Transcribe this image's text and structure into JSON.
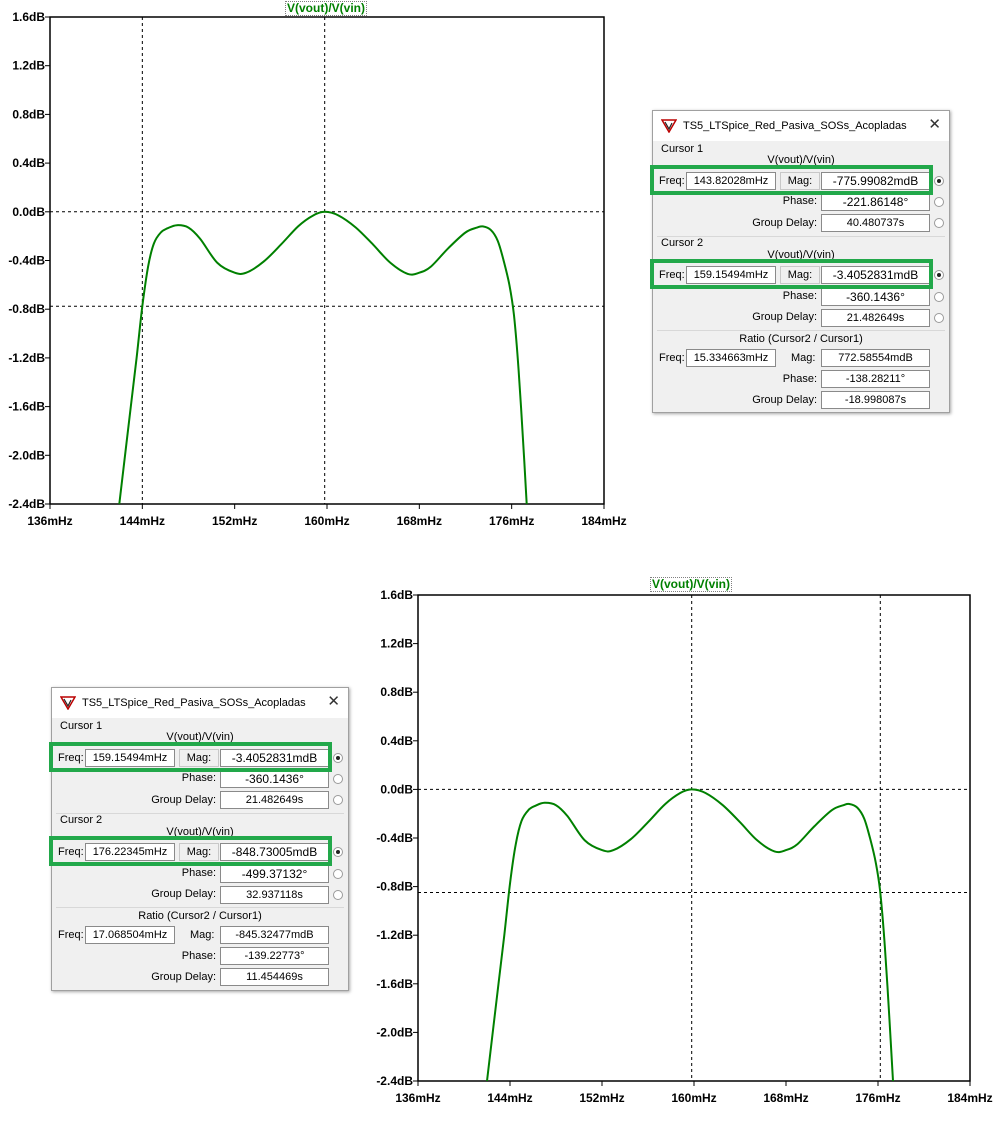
{
  "chart_data": [
    {
      "type": "line",
      "title": "V(vout)/V(vin)",
      "xlabel": "",
      "ylabel": "",
      "xlim": [
        136,
        184
      ],
      "ylim": [
        -2.4,
        1.6
      ],
      "x_unit": "mHz",
      "y_unit": "dB",
      "x_ticks": [
        "136mHz",
        "144mHz",
        "152mHz",
        "160mHz",
        "168mHz",
        "176mHz",
        "184mHz"
      ],
      "y_ticks": [
        "1.6dB",
        "1.2dB",
        "0.8dB",
        "0.4dB",
        "0.0dB",
        "-0.4dB",
        "-0.8dB",
        "-1.2dB",
        "-1.6dB",
        "-2.0dB",
        "-2.4dB"
      ],
      "grid": false,
      "series": [
        {
          "name": "V(vout)/V(vin)",
          "color": "#008000",
          "x": [
            142.0,
            143.0,
            143.5,
            144.0,
            144.5,
            145.0,
            145.6,
            146.2,
            147.0,
            148.0,
            149.0,
            150.5,
            152.0,
            153.0,
            154.5,
            156.0,
            157.5,
            158.8,
            159.8,
            161.0,
            162.5,
            164.0,
            165.5,
            167.0,
            168.0,
            169.0,
            170.5,
            172.0,
            173.0,
            173.5,
            174.2,
            174.8,
            175.3,
            175.8,
            176.2,
            176.6,
            177.0,
            177.3
          ],
          "y": [
            -2.4,
            -1.6,
            -1.2,
            -0.775,
            -0.45,
            -0.26,
            -0.17,
            -0.135,
            -0.11,
            -0.13,
            -0.22,
            -0.42,
            -0.5,
            -0.5,
            -0.41,
            -0.27,
            -0.12,
            -0.03,
            0.0,
            -0.03,
            -0.13,
            -0.27,
            -0.42,
            -0.51,
            -0.5,
            -0.45,
            -0.3,
            -0.17,
            -0.13,
            -0.12,
            -0.15,
            -0.24,
            -0.4,
            -0.6,
            -0.85,
            -1.3,
            -1.9,
            -2.4
          ]
        }
      ],
      "cursors": [
        144.0,
        159.8
      ],
      "cursor_levels": [
        -0.776,
        0.0
      ]
    },
    {
      "type": "line",
      "title": "V(vout)/V(vin)",
      "xlabel": "",
      "ylabel": "",
      "xlim": [
        136,
        184
      ],
      "ylim": [
        -2.4,
        1.6
      ],
      "x_unit": "mHz",
      "y_unit": "dB",
      "x_ticks": [
        "136mHz",
        "144mHz",
        "152mHz",
        "160mHz",
        "168mHz",
        "176mHz",
        "184mHz"
      ],
      "y_ticks": [
        "1.6dB",
        "1.2dB",
        "0.8dB",
        "0.4dB",
        "0.0dB",
        "-0.4dB",
        "-0.8dB",
        "-1.2dB",
        "-1.6dB",
        "-2.0dB",
        "-2.4dB"
      ],
      "grid": false,
      "series": [
        {
          "name": "V(vout)/V(vin)",
          "color": "#008000",
          "x": [
            142.0,
            143.0,
            143.5,
            144.0,
            144.5,
            145.0,
            145.6,
            146.2,
            147.0,
            148.0,
            149.0,
            150.5,
            152.0,
            153.0,
            154.5,
            156.0,
            157.5,
            158.8,
            159.8,
            161.0,
            162.5,
            164.0,
            165.5,
            167.0,
            168.0,
            169.0,
            170.5,
            172.0,
            173.0,
            173.5,
            174.2,
            174.8,
            175.3,
            175.8,
            176.2,
            176.6,
            177.0,
            177.3
          ],
          "y": [
            -2.4,
            -1.6,
            -1.2,
            -0.775,
            -0.45,
            -0.26,
            -0.17,
            -0.135,
            -0.11,
            -0.13,
            -0.22,
            -0.42,
            -0.5,
            -0.5,
            -0.41,
            -0.27,
            -0.12,
            -0.03,
            0.0,
            -0.03,
            -0.13,
            -0.27,
            -0.42,
            -0.51,
            -0.5,
            -0.45,
            -0.3,
            -0.17,
            -0.13,
            -0.12,
            -0.15,
            -0.24,
            -0.4,
            -0.6,
            -0.85,
            -1.3,
            -1.9,
            -2.4
          ]
        }
      ],
      "cursors": [
        159.8,
        176.2
      ],
      "cursor_levels": [
        0.0,
        -0.849
      ]
    }
  ],
  "cursor_windows": [
    {
      "title": "TS5_LTSpice_Red_Pasiva_SOSs_Acopladas",
      "cursor1": {
        "header": "Cursor 1",
        "expr": "V(vout)/V(vin)",
        "freq_label": "Freq:",
        "freq": "143.82028mHz",
        "mag_label": "Mag:",
        "mag": "-775.99082mdB",
        "phase_label": "Phase:",
        "phase": "-221.86148°",
        "gd_label": "Group Delay:",
        "gd": "40.480737s"
      },
      "cursor2": {
        "header": "Cursor 2",
        "expr": "V(vout)/V(vin)",
        "freq_label": "Freq:",
        "freq": "159.15494mHz",
        "mag_label": "Mag:",
        "mag": "-3.4052831mdB",
        "phase_label": "Phase:",
        "phase": "-360.1436°",
        "gd_label": "Group Delay:",
        "gd": "21.482649s"
      },
      "ratio": {
        "header": "Ratio (Cursor2 / Cursor1)",
        "freq_label": "Freq:",
        "freq": "15.334663mHz",
        "mag_label": "Mag:",
        "mag": "772.58554mdB",
        "phase_label": "Phase:",
        "phase": "-138.28211°",
        "gd_label": "Group Delay:",
        "gd": "-18.998087s"
      }
    },
    {
      "title": "TS5_LTSpice_Red_Pasiva_SOSs_Acopladas",
      "cursor1": {
        "header": "Cursor 1",
        "expr": "V(vout)/V(vin)",
        "freq_label": "Freq:",
        "freq": "159.15494mHz",
        "mag_label": "Mag:",
        "mag": "-3.4052831mdB",
        "phase_label": "Phase:",
        "phase": "-360.1436°",
        "gd_label": "Group Delay:",
        "gd": "21.482649s"
      },
      "cursor2": {
        "header": "Cursor 2",
        "expr": "V(vout)/V(vin)",
        "freq_label": "Freq:",
        "freq": "176.22345mHz",
        "mag_label": "Mag:",
        "mag": "-848.73005mdB",
        "phase_label": "Phase:",
        "phase": "-499.37132°",
        "gd_label": "Group Delay:",
        "gd": "32.937118s"
      },
      "ratio": {
        "header": "Ratio (Cursor2 / Cursor1)",
        "freq_label": "Freq:",
        "freq": "17.068504mHz",
        "mag_label": "Mag:",
        "mag": "-845.32477mdB",
        "phase_label": "Phase:",
        "phase": "-139.22773°",
        "gd_label": "Group Delay:",
        "gd": "11.454469s"
      }
    }
  ],
  "colors": {
    "trace": "#008000",
    "highlight": "#22a84a",
    "axis": "#000000"
  }
}
